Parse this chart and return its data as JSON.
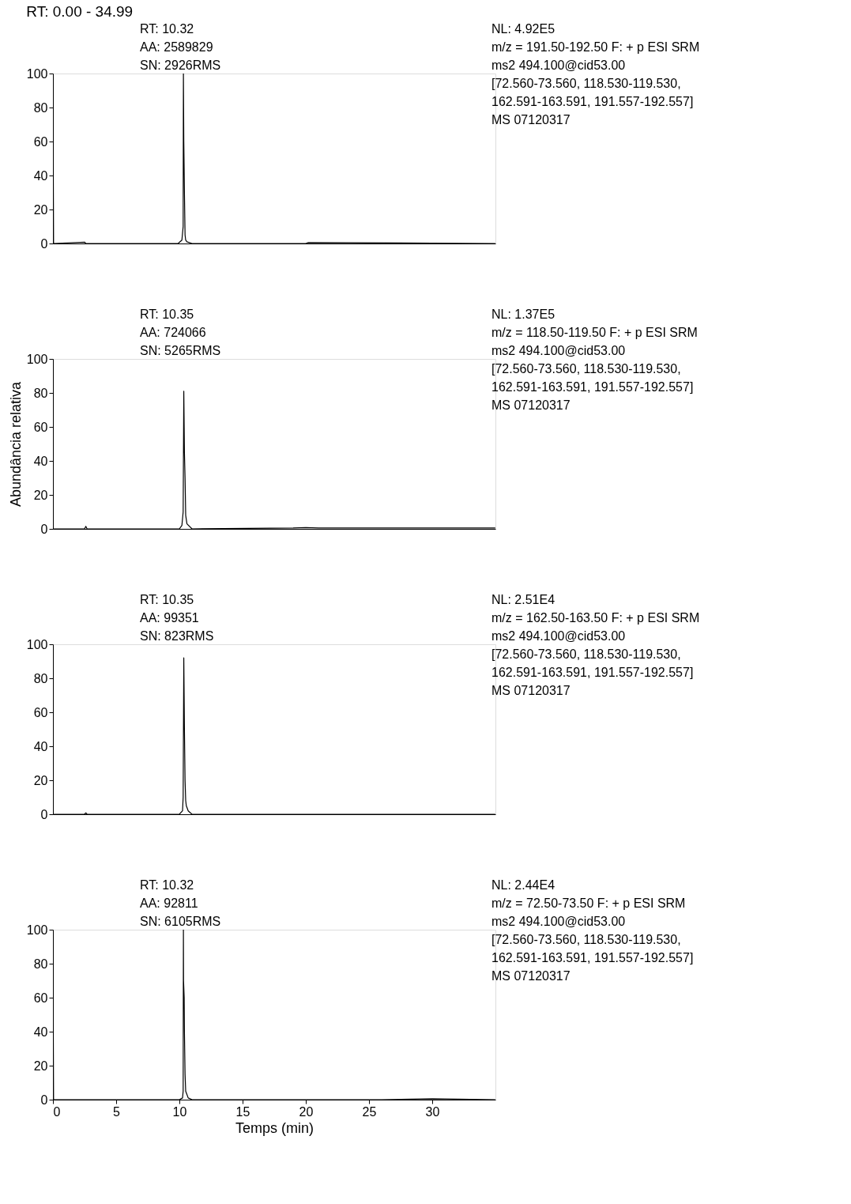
{
  "chart_data": [
    {
      "type": "line",
      "title": "RT: 0.00 - 34.99",
      "annotations": [
        "RT: 10.32",
        "AA: 2589829",
        "SN: 2926RMS",
        "NL: 4.92E5",
        "m/z = 191.50-192.50 F: + p ESI SRM",
        "ms2 494.100@cid53.00",
        "[72.560-73.560, 118.530-119.530,",
        "162.591-163.591, 191.557-192.557]",
        "MS 07120317"
      ],
      "x": [
        0,
        0.05,
        2.5,
        2.6,
        5,
        9.9,
        10.2,
        10.3,
        10.32,
        10.35,
        10.4,
        10.45,
        10.5,
        10.6,
        11,
        20,
        20.2,
        34.99
      ],
      "values": [
        98,
        0,
        0.8,
        0,
        0,
        0,
        2,
        10,
        100,
        60,
        30,
        5,
        2,
        1,
        0,
        0,
        0.5,
        0
      ],
      "color": "#000000",
      "xlim": [
        0,
        35
      ],
      "ylim": [
        0,
        100
      ],
      "yticks": [
        0,
        20,
        40,
        60,
        80,
        100
      ],
      "tick_labels": "y",
      "grid": false
    },
    {
      "type": "line",
      "ylabel": "Abundância relativa",
      "annotations": [
        "RT: 10.35",
        "AA: 724066",
        "SN: 5265RMS",
        "NL: 1.37E5",
        "m/z = 118.50-119.50 F: + p ESI SRM",
        "ms2 494.100@cid53.00",
        "[72.560-73.560, 118.530-119.530,",
        "162.591-163.591, 191.557-192.557]",
        "MS 07120317"
      ],
      "x": [
        0,
        2.5,
        2.6,
        2.7,
        5,
        10,
        10.2,
        10.3,
        10.35,
        10.4,
        10.45,
        10.5,
        10.6,
        11,
        19,
        20,
        21,
        22,
        34.99
      ],
      "values": [
        0,
        0,
        1.5,
        0,
        0,
        0,
        2,
        10,
        81,
        45,
        30,
        8,
        3,
        0,
        0.5,
        0.8,
        0.5,
        0.5,
        0.5
      ],
      "color": "#000000",
      "xlim": [
        0,
        35
      ],
      "ylim": [
        0,
        100
      ],
      "yticks": [
        0,
        20,
        40,
        60,
        80,
        100
      ],
      "tick_labels": "y",
      "grid": false
    },
    {
      "type": "line",
      "annotations": [
        "RT: 10.35",
        "AA: 99351",
        "SN: 823RMS",
        "NL: 2.51E4",
        "m/z = 162.50-163.50 F: + p ESI SRM",
        "ms2 494.100@cid53.00",
        "[72.560-73.560, 118.530-119.530,",
        "162.591-163.591, 191.557-192.557]",
        "MS 07120317"
      ],
      "x": [
        0,
        2.5,
        2.6,
        2.7,
        10,
        10.25,
        10.3,
        10.35,
        10.4,
        10.45,
        10.5,
        10.55,
        10.7,
        11,
        34.99
      ],
      "values": [
        0,
        0,
        0.8,
        0,
        0,
        2,
        10,
        92,
        50,
        20,
        8,
        5,
        2,
        0,
        0
      ],
      "color": "#000000",
      "xlim": [
        0,
        35
      ],
      "ylim": [
        0,
        100
      ],
      "yticks": [
        0,
        20,
        40,
        60,
        80,
        100
      ],
      "tick_labels": "y",
      "grid": false
    },
    {
      "type": "line",
      "xlabel": "Temps (min)",
      "annotations": [
        "RT: 10.32",
        "AA: 92811",
        "SN: 6105RMS",
        "NL: 2.44E4",
        "m/z = 72.50-73.50 F: + p ESI SRM",
        "ms2 494.100@cid53.00",
        "[72.560-73.560, 118.530-119.530,",
        "162.591-163.591, 191.557-192.557]",
        "MS 07120317"
      ],
      "x": [
        0,
        0.05,
        5,
        10,
        10.25,
        10.3,
        10.32,
        10.33,
        10.38,
        10.4,
        10.45,
        10.5,
        10.7,
        11,
        26,
        30,
        34.99
      ],
      "values": [
        92,
        0,
        0,
        0,
        1,
        5,
        100,
        70,
        60,
        40,
        15,
        5,
        1,
        0,
        0,
        0.5,
        0
      ],
      "color": "#000000",
      "xlim": [
        0,
        35
      ],
      "ylim": [
        0,
        100
      ],
      "yticks": [
        0,
        20,
        40,
        60,
        80,
        100
      ],
      "xticks": [
        0,
        5,
        10,
        15,
        20,
        25,
        30
      ],
      "grid": false
    }
  ]
}
